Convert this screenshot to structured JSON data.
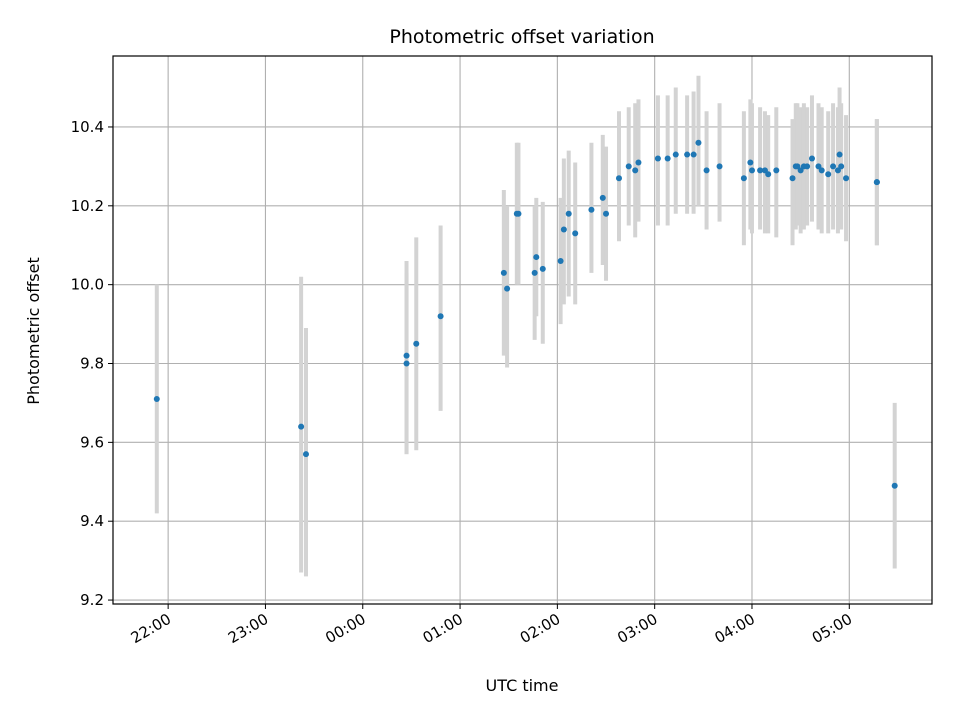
{
  "chart_data": {
    "type": "scatter",
    "title": "Photometric offset variation",
    "xlabel": "UTC time",
    "ylabel": "Photometric offset",
    "grid": true,
    "x_axis_kind": "time",
    "xlim": [
      "21:26",
      "05:51"
    ],
    "ylim": [
      9.19,
      10.58
    ],
    "x_ticks": [
      "22:00",
      "23:00",
      "00:00",
      "01:00",
      "02:00",
      "03:00",
      "04:00",
      "05:00"
    ],
    "y_ticks": [
      9.2,
      9.4,
      9.6,
      9.8,
      10.0,
      10.2,
      10.4
    ],
    "y_tick_labels": [
      "9.2",
      "9.4",
      "9.6",
      "9.8",
      "10.0",
      "10.2",
      "10.4"
    ],
    "point_color": "#1f77b4",
    "errorbar_color": "#d3d3d3",
    "series": [
      {
        "x": [
          "21:53",
          "23:22",
          "23:25",
          "00:27",
          "00:27",
          "00:33",
          "00:48",
          "01:27",
          "01:29",
          "01:35",
          "01:36",
          "01:46",
          "01:47",
          "01:51",
          "02:02",
          "02:04",
          "02:07",
          "02:11",
          "02:21",
          "02:28",
          "02:30",
          "02:38",
          "02:44",
          "02:48",
          "02:50",
          "03:02",
          "03:08",
          "03:13",
          "03:20",
          "03:24",
          "03:27",
          "03:32",
          "03:40",
          "03:55",
          "03:59",
          "04:00",
          "04:05",
          "04:08",
          "04:10",
          "04:15",
          "04:25",
          "04:27",
          "04:28",
          "04:30",
          "04:32",
          "04:34",
          "04:37",
          "04:41",
          "04:43",
          "04:47",
          "04:50",
          "04:53",
          "04:54",
          "04:55",
          "04:58",
          "05:17",
          "05:17",
          "05:28"
        ],
        "y": [
          9.71,
          9.64,
          9.57,
          9.82,
          9.8,
          9.85,
          9.92,
          10.03,
          9.99,
          10.18,
          10.18,
          10.03,
          10.07,
          10.04,
          10.06,
          10.14,
          10.18,
          10.13,
          10.19,
          10.22,
          10.18,
          10.27,
          10.3,
          10.29,
          10.31,
          10.32,
          10.32,
          10.33,
          10.33,
          10.33,
          10.36,
          10.29,
          10.3,
          10.27,
          10.31,
          10.29,
          10.29,
          10.29,
          10.28,
          10.29,
          10.27,
          10.3,
          10.3,
          10.29,
          10.3,
          10.3,
          10.32,
          10.3,
          10.29,
          10.28,
          10.3,
          10.29,
          10.33,
          10.3,
          10.27,
          10.26,
          10.26,
          9.49
        ],
        "y_low": [
          9.42,
          9.27,
          9.26,
          9.57,
          9.57,
          9.58,
          9.68,
          9.82,
          9.79,
          10.0,
          10.0,
          9.86,
          9.92,
          9.85,
          9.9,
          9.95,
          9.97,
          9.95,
          10.03,
          10.05,
          10.01,
          10.11,
          10.15,
          10.12,
          10.16,
          10.15,
          10.15,
          10.18,
          10.18,
          10.18,
          10.2,
          10.14,
          10.16,
          10.1,
          10.14,
          10.13,
          10.14,
          10.13,
          10.13,
          10.12,
          10.1,
          10.14,
          10.15,
          10.13,
          10.14,
          10.15,
          10.16,
          10.14,
          10.13,
          10.13,
          10.14,
          10.13,
          10.18,
          10.14,
          10.11,
          10.1,
          10.1,
          9.28
        ],
        "y_high": [
          10.0,
          10.02,
          9.89,
          10.06,
          10.03,
          10.12,
          10.15,
          10.24,
          10.2,
          10.36,
          10.36,
          10.2,
          10.22,
          10.21,
          10.22,
          10.32,
          10.34,
          10.31,
          10.36,
          10.38,
          10.35,
          10.44,
          10.45,
          10.46,
          10.47,
          10.48,
          10.48,
          10.5,
          10.48,
          10.49,
          10.53,
          10.44,
          10.46,
          10.44,
          10.47,
          10.46,
          10.45,
          10.44,
          10.43,
          10.45,
          10.42,
          10.46,
          10.46,
          10.45,
          10.46,
          10.45,
          10.48,
          10.46,
          10.45,
          10.44,
          10.46,
          10.45,
          10.5,
          10.46,
          10.43,
          10.42,
          10.42,
          9.7
        ]
      }
    ]
  }
}
